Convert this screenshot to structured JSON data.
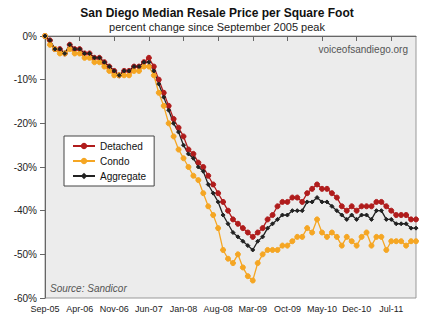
{
  "chart_data": {
    "type": "line",
    "title": "San Diego Median Resale Price per Square Foot",
    "subtitle": "percent change since September 2005 peak",
    "annotations": [
      "voiceofsandiego.org",
      "Source: Sandicor"
    ],
    "categories": [
      "Sep-05",
      null,
      null,
      null,
      null,
      null,
      null,
      "Apr-06",
      null,
      null,
      null,
      null,
      null,
      null,
      "Nov-06",
      null,
      null,
      null,
      null,
      null,
      null,
      "Jun-07",
      null,
      null,
      null,
      null,
      null,
      null,
      "Jan-08",
      null,
      null,
      null,
      null,
      null,
      null,
      "Aug-08",
      null,
      null,
      null,
      null,
      null,
      null,
      "Mar-09",
      null,
      null,
      null,
      null,
      null,
      null,
      "Oct-09",
      null,
      null,
      null,
      null,
      null,
      null,
      "May-10",
      null,
      null,
      null,
      null,
      null,
      null,
      "Dec-10",
      null,
      null,
      null,
      null,
      null,
      null,
      "Jul-11",
      null,
      null,
      null,
      null,
      null
    ],
    "series": [
      {
        "name": "Detached",
        "color": "#b01c1c",
        "marker": "circle",
        "values": [
          0,
          -1,
          -3,
          -3,
          -4,
          -2,
          -3,
          -3,
          -4,
          -4,
          -5,
          -5,
          -6,
          -7,
          -8,
          -9,
          -8,
          -8,
          -7,
          -7,
          -6,
          -5,
          -7,
          -10,
          -13,
          -16,
          -19,
          -21,
          -23,
          -26,
          -27,
          -29,
          -30,
          -32,
          -34,
          -36,
          -38,
          -40,
          -42,
          -43,
          -44,
          -45,
          -46,
          -45,
          -44,
          -42,
          -41,
          -39,
          -38,
          -38,
          -37,
          -37,
          -38,
          -36,
          -35,
          -34,
          -35,
          -35,
          -36,
          -37,
          -39,
          -40,
          -39,
          -40,
          -39,
          -39,
          -39,
          -38,
          -38,
          -39,
          -40,
          -41,
          -41,
          -41,
          -42,
          -42
        ]
      },
      {
        "name": "Condo",
        "color": "#f5a623",
        "marker": "circle",
        "values": [
          0,
          -2,
          -3,
          -4,
          -4,
          -3,
          -4,
          -4,
          -5,
          -5,
          -6,
          -6,
          -7,
          -8,
          -9,
          -9,
          -9,
          -9,
          -8,
          -8,
          -7,
          -7,
          -9,
          -13,
          -16,
          -20,
          -23,
          -26,
          -28,
          -30,
          -32,
          -33,
          -36,
          -39,
          -41,
          -44,
          -49,
          -51,
          -52,
          -50,
          -53,
          -55,
          -56,
          -52,
          -50,
          -49,
          -49,
          -49,
          -48,
          -48,
          -47,
          -46,
          -46,
          -44,
          -45,
          -42,
          -45,
          -46,
          -45,
          -46,
          -48,
          -46,
          -47,
          -48,
          -46,
          -45,
          -48,
          -46,
          -46,
          -49,
          -47,
          -47,
          -47,
          -48,
          -47,
          -47
        ]
      },
      {
        "name": "Aggregate",
        "color": "#222222",
        "marker": "diamond",
        "values": [
          0,
          -1,
          -3,
          -3,
          -4,
          -2,
          -3,
          -3,
          -4,
          -4,
          -5,
          -5,
          -6,
          -7,
          -8,
          -9,
          -8,
          -8,
          -7,
          -7,
          -6,
          -6,
          -8,
          -11,
          -14,
          -17,
          -20,
          -22,
          -25,
          -27,
          -28,
          -30,
          -31,
          -34,
          -36,
          -38,
          -41,
          -43,
          -45,
          -46,
          -47,
          -48,
          -49,
          -47,
          -46,
          -44,
          -43,
          -42,
          -41,
          -41,
          -40,
          -40,
          -40,
          -38,
          -38,
          -37,
          -38,
          -38,
          -39,
          -40,
          -41,
          -42,
          -41,
          -42,
          -41,
          -41,
          -42,
          -40,
          -40,
          -42,
          -42,
          -43,
          -43,
          -43,
          -44,
          -44
        ]
      }
    ],
    "ylim": [
      -60,
      0
    ],
    "yticks": [
      {
        "value": -60,
        "label": "-60%"
      },
      {
        "value": -50,
        "label": "-50%"
      },
      {
        "value": -40,
        "label": "-40%"
      },
      {
        "value": -30,
        "label": "-30%"
      },
      {
        "value": -20,
        "label": "-20%"
      },
      {
        "value": -10,
        "label": "-10%"
      },
      {
        "value": 0,
        "label": "0%"
      }
    ],
    "grid": false,
    "legend": "left"
  }
}
